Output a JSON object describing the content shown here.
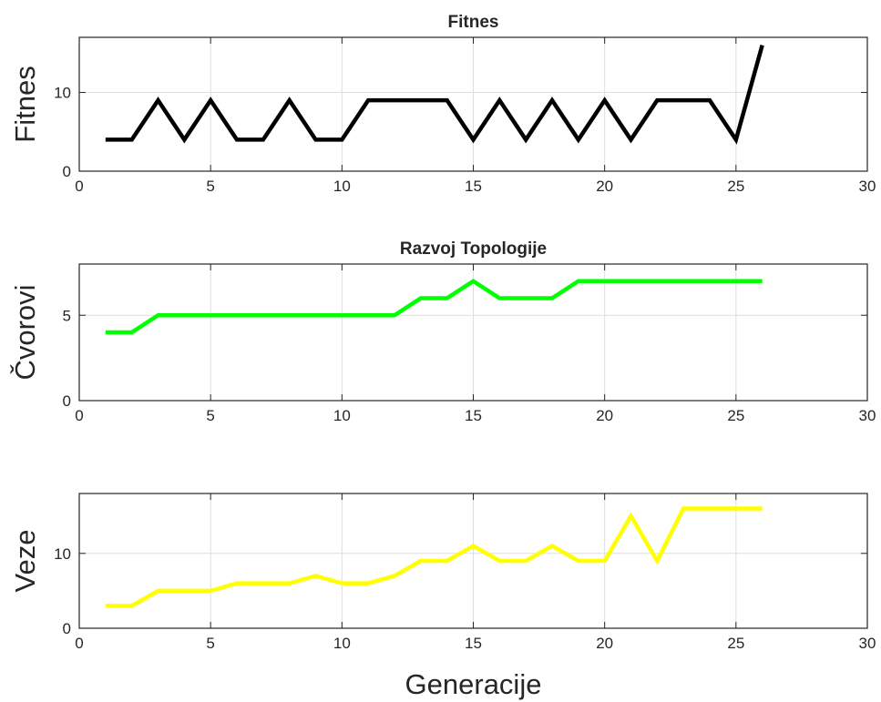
{
  "chart_data": [
    {
      "type": "line",
      "title": "Fitnes",
      "xlabel": "",
      "ylabel": "Fitnes",
      "xlim": [
        0,
        30
      ],
      "ylim": [
        0,
        17
      ],
      "xticks": [
        0,
        5,
        10,
        15,
        20,
        25,
        30
      ],
      "yticks": [
        0,
        10
      ],
      "grid": true,
      "series": [
        {
          "color": "#000000",
          "x": [
            1,
            2,
            3,
            4,
            5,
            6,
            7,
            8,
            9,
            10,
            11,
            12,
            13,
            14,
            15,
            16,
            17,
            18,
            19,
            20,
            21,
            22,
            23,
            24,
            25,
            26
          ],
          "y": [
            4,
            4,
            9,
            4,
            9,
            4,
            4,
            9,
            4,
            4,
            9,
            9,
            9,
            9,
            4,
            9,
            4,
            9,
            4,
            9,
            4,
            9,
            9,
            9,
            4,
            16
          ]
        }
      ]
    },
    {
      "type": "line",
      "title": "Razvoj Topologije",
      "xlabel": "",
      "ylabel": "Čvorovi",
      "xlim": [
        0,
        30
      ],
      "ylim": [
        0,
        8
      ],
      "xticks": [
        0,
        5,
        10,
        15,
        20,
        25,
        30
      ],
      "yticks": [
        0,
        5
      ],
      "grid": true,
      "series": [
        {
          "color": "#00ff00",
          "x": [
            1,
            2,
            3,
            4,
            5,
            6,
            7,
            8,
            9,
            10,
            11,
            12,
            13,
            14,
            15,
            16,
            17,
            18,
            19,
            20,
            21,
            22,
            23,
            24,
            25,
            26
          ],
          "y": [
            4,
            4,
            5,
            5,
            5,
            5,
            5,
            5,
            5,
            5,
            5,
            5,
            6,
            6,
            7,
            6,
            6,
            6,
            7,
            7,
            7,
            7,
            7,
            7,
            7,
            7
          ]
        }
      ]
    },
    {
      "type": "line",
      "title": "",
      "xlabel": "Generacije",
      "ylabel": "Veze",
      "xlim": [
        0,
        30
      ],
      "ylim": [
        0,
        18
      ],
      "xticks": [
        0,
        5,
        10,
        15,
        20,
        25,
        30
      ],
      "yticks": [
        0,
        10
      ],
      "grid": true,
      "series": [
        {
          "color": "#ffff00",
          "x": [
            1,
            2,
            3,
            4,
            5,
            6,
            7,
            8,
            9,
            10,
            11,
            12,
            13,
            14,
            15,
            16,
            17,
            18,
            19,
            20,
            21,
            22,
            23,
            24,
            25,
            26
          ],
          "y": [
            3,
            3,
            5,
            5,
            5,
            6,
            6,
            6,
            7,
            6,
            6,
            7,
            9,
            9,
            11,
            9,
            9,
            11,
            9,
            9,
            15,
            9,
            16,
            16,
            16,
            16
          ]
        }
      ]
    }
  ]
}
